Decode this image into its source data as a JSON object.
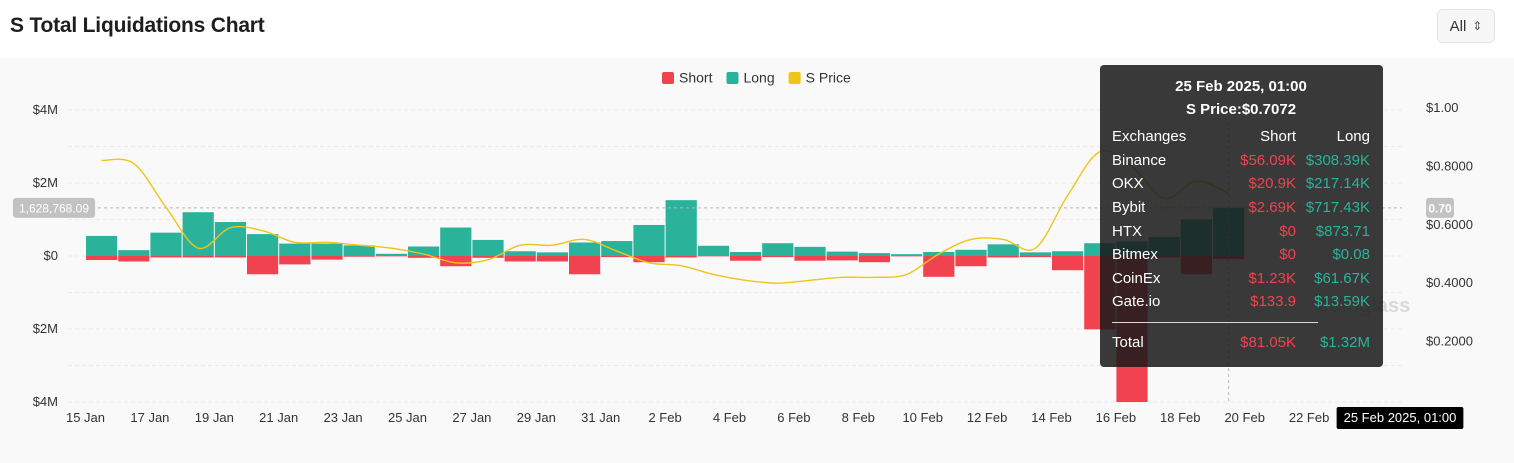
{
  "title": "S Total Liquidations Chart",
  "range_selector": {
    "value": "All"
  },
  "chart_data": {
    "type": "bar",
    "legend": [
      {
        "name": "Short",
        "color": "#f0434f"
      },
      {
        "name": "Long",
        "color": "#2ab39a"
      },
      {
        "name": "S Price",
        "color": "#f0c419"
      }
    ],
    "legend_position": "top-center",
    "x_tick_labels": [
      "15 Jan",
      "17 Jan",
      "19 Jan",
      "21 Jan",
      "23 Jan",
      "25 Jan",
      "27 Jan",
      "29 Jan",
      "31 Jan",
      "2 Feb",
      "4 Feb",
      "6 Feb",
      "8 Feb",
      "10 Feb",
      "12 Feb",
      "14 Feb",
      "16 Feb",
      "18 Feb",
      "20 Feb",
      "22 Feb"
    ],
    "y_left_ticks": [
      "$4M",
      "$2M",
      "$0",
      "$2M",
      "$4M"
    ],
    "y_left_range": [
      -4000000,
      4000000
    ],
    "y_right_ticks": [
      "$1.00",
      "$0.8000",
      "$0.6000",
      "$0.4000",
      "$0.2000"
    ],
    "y_right_range": [
      0,
      1.0
    ],
    "grid": true,
    "start_date": "15 Jan",
    "long": [
      550000,
      160000,
      640000,
      1200000,
      930000,
      600000,
      340000,
      340000,
      290000,
      60000,
      260000,
      780000,
      440000,
      130000,
      100000,
      370000,
      410000,
      850000,
      1530000,
      280000,
      110000,
      350000,
      250000,
      120000,
      80000,
      50000,
      110000,
      170000,
      320000,
      100000,
      130000,
      350000,
      400000,
      520000,
      1000000,
      1320000
    ],
    "short": [
      -110000,
      -150000,
      -40000,
      -40000,
      -40000,
      -500000,
      -230000,
      -100000,
      -20000,
      -10000,
      -50000,
      -280000,
      -50000,
      -150000,
      -150000,
      -500000,
      -30000,
      -170000,
      -40000,
      -10000,
      -130000,
      -30000,
      -130000,
      -120000,
      -170000,
      -10000,
      -570000,
      -280000,
      -40000,
      -30000,
      -390000,
      -2010000,
      -4000000,
      -40000,
      -500000,
      -80000
    ],
    "price": [
      0.82,
      0.81,
      0.66,
      0.52,
      0.59,
      0.58,
      0.54,
      0.54,
      0.53,
      0.52,
      0.5,
      0.47,
      0.48,
      0.53,
      0.53,
      0.55,
      0.51,
      0.47,
      0.46,
      0.43,
      0.41,
      0.4,
      0.41,
      0.42,
      0.42,
      0.43,
      0.5,
      0.55,
      0.55,
      0.52,
      0.7,
      0.85,
      0.8,
      0.69,
      0.75,
      0.7072
    ],
    "crosshair_value_label": "1,628,768.09",
    "crosshair_price_label": "0.70",
    "crosshair_date_label": "25 Feb 2025, 01:00",
    "watermark": "coinglass"
  },
  "tooltip": {
    "date": "25 Feb 2025, 01:00",
    "price": "S Price:$0.7072",
    "header": {
      "col1": "Exchanges",
      "col2": "Short",
      "col3": "Long"
    },
    "rows": [
      {
        "exchange": "Binance",
        "short": "$56.09K",
        "long": "$308.39K"
      },
      {
        "exchange": "OKX",
        "short": "$20.9K",
        "long": "$217.14K"
      },
      {
        "exchange": "Bybit",
        "short": "$2.69K",
        "long": "$717.43K"
      },
      {
        "exchange": "HTX",
        "short": "$0",
        "long": "$873.71"
      },
      {
        "exchange": "Bitmex",
        "short": "$0",
        "long": "$0.08"
      },
      {
        "exchange": "CoinEx",
        "short": "$1.23K",
        "long": "$61.67K"
      },
      {
        "exchange": "Gate.io",
        "short": "$133.9",
        "long": "$13.59K"
      }
    ],
    "total": {
      "label": "Total",
      "short": "$81.05K",
      "long": "$1.32M"
    }
  }
}
